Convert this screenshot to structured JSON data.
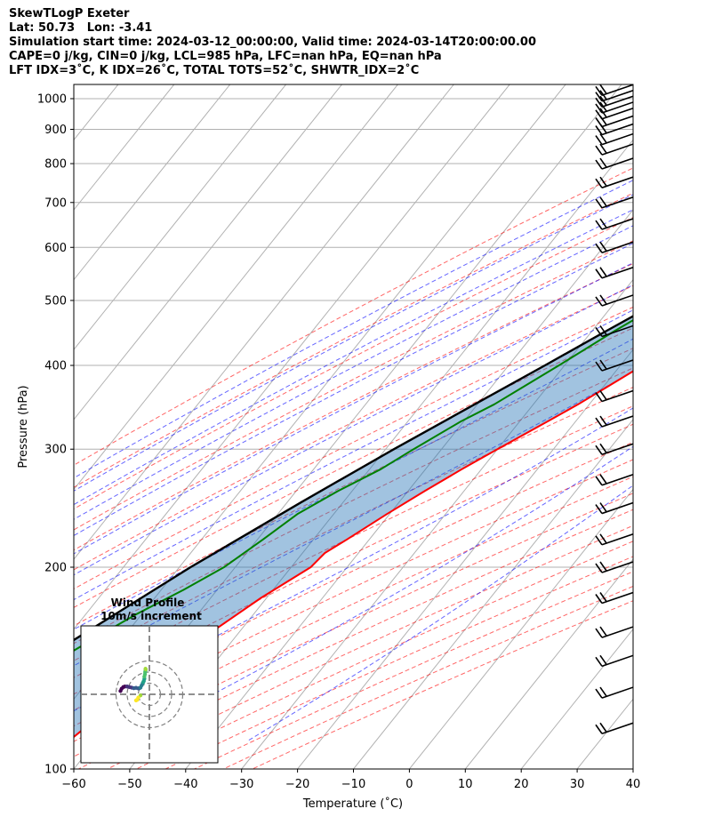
{
  "header": {
    "lines": [
      "SkewTLogP Exeter",
      "Lat: 50.73   Lon: -3.41",
      "Simulation start time: 2024-03-12_00:00:00, Valid time: 2024-03-14T20:00:00.00",
      "CAPE=0 j/kg, CIN=0 j/kg, LCL=985 hPa, LFC=nan hPa, EQ=nan hPa",
      "LFT IDX=3˚C, K IDX=26˚C, TOTAL TOTS=52˚C, SHWTR_IDX=2˚C"
    ]
  },
  "chart_data": {
    "type": "line",
    "subtype": "skew-T log-p",
    "xlabel": "Temperature (˚C)",
    "ylabel": "Pressure (hPa)",
    "xlim": [
      -60,
      40
    ],
    "ylim": [
      1050,
      100
    ],
    "y_scale": "log",
    "x_ticks": [
      -60,
      -50,
      -40,
      -30,
      -20,
      -10,
      0,
      10,
      20,
      30,
      40
    ],
    "y_ticks": [
      100,
      200,
      300,
      400,
      500,
      600,
      700,
      800,
      900,
      1000
    ],
    "grid": true,
    "series": [
      {
        "key": "temperature",
        "color": "#ff0000",
        "points": [
          [
            1000,
            11.5
          ],
          [
            950,
            11.5
          ],
          [
            925,
            11
          ],
          [
            900,
            11.3
          ],
          [
            850,
            11.8
          ],
          [
            800,
            9.3
          ],
          [
            750,
            6.6
          ],
          [
            700,
            3.8
          ],
          [
            650,
            1.3
          ],
          [
            600,
            -1.5
          ],
          [
            550,
            -4.5
          ],
          [
            500,
            -7.3
          ],
          [
            450,
            -11
          ],
          [
            400,
            -16
          ],
          [
            370,
            -19.5
          ],
          [
            350,
            -22
          ],
          [
            330,
            -25
          ],
          [
            300,
            -30
          ],
          [
            280,
            -33.5
          ],
          [
            260,
            -37
          ],
          [
            240,
            -40.5
          ],
          [
            220,
            -44
          ],
          [
            210,
            -46
          ],
          [
            200,
            -46.5
          ],
          [
            180,
            -51
          ],
          [
            160,
            -55
          ],
          [
            140,
            -59.5
          ],
          [
            120,
            -63
          ],
          [
            100,
            -67
          ]
        ]
      },
      {
        "key": "dewpoint",
        "color": "#008000",
        "points": [
          [
            1000,
            10.8
          ],
          [
            950,
            9
          ],
          [
            920,
            6.5
          ],
          [
            880,
            4
          ],
          [
            850,
            1.5
          ],
          [
            800,
            -1.5
          ],
          [
            750,
            -4.5
          ],
          [
            700,
            -7.5
          ],
          [
            650,
            -10.5
          ],
          [
            600,
            -14
          ],
          [
            550,
            -17.5
          ],
          [
            500,
            -21
          ],
          [
            450,
            -26
          ],
          [
            400,
            -31
          ],
          [
            370,
            -34.5
          ],
          [
            350,
            -37
          ],
          [
            330,
            -40.5
          ],
          [
            300,
            -45
          ],
          [
            280,
            -48
          ],
          [
            260,
            -52.5
          ],
          [
            240,
            -56.5
          ],
          [
            220,
            -59
          ],
          [
            200,
            -62
          ],
          [
            185,
            -66
          ],
          [
            170,
            -71
          ],
          [
            160,
            -74
          ],
          [
            150,
            -77
          ],
          [
            130,
            -80
          ],
          [
            100,
            -85
          ]
        ]
      },
      {
        "key": "parcel",
        "color": "#000000",
        "points": [
          [
            1000,
            11.5
          ],
          [
            985,
            11.3
          ],
          [
            950,
            10
          ],
          [
            900,
            7.6
          ],
          [
            850,
            4.8
          ],
          [
            800,
            1.8
          ],
          [
            750,
            -1.4
          ],
          [
            700,
            -4.8
          ],
          [
            650,
            -8.5
          ],
          [
            600,
            -12.6
          ],
          [
            550,
            -17
          ],
          [
            500,
            -22
          ],
          [
            450,
            -27.5
          ],
          [
            400,
            -33.5
          ],
          [
            350,
            -40.5
          ],
          [
            300,
            -48.5
          ],
          [
            250,
            -57.5
          ],
          [
            200,
            -68
          ],
          [
            150,
            -80
          ],
          [
            100,
            -94
          ]
        ]
      }
    ],
    "wind_barbs": {
      "color": "#000000",
      "levels": [
        1030,
        1010,
        990,
        970,
        950,
        925,
        900,
        870,
        840,
        800,
        750,
        700,
        650,
        600,
        550,
        500,
        450,
        400,
        360,
        330,
        300,
        270,
        245,
        220,
        200,
        180,
        160,
        145,
        130,
        115
      ]
    },
    "hodograph": {
      "title": "Wind Profile",
      "subtitle": "10m/s increment",
      "rings": [
        10,
        20,
        30
      ],
      "colormap": "viridis",
      "points": [
        [
          -26,
          3
        ],
        [
          -25,
          5
        ],
        [
          -23.5,
          6.5
        ],
        [
          -22,
          7
        ],
        [
          -20,
          7
        ],
        [
          -18,
          6.5
        ],
        [
          -16,
          6
        ],
        [
          -14,
          5.5
        ],
        [
          -12,
          5.8
        ],
        [
          -10,
          5.3
        ],
        [
          -9,
          5.5
        ],
        [
          -8,
          6
        ],
        [
          -7,
          8
        ],
        [
          -6,
          10
        ],
        [
          -5.5,
          11
        ],
        [
          -5,
          12
        ],
        [
          -4.5,
          14
        ],
        [
          -4.5,
          16
        ],
        [
          -4,
          18
        ],
        [
          -3.8,
          20
        ],
        [
          -3.5,
          21.5
        ],
        [
          -3.3,
          22.5
        ],
        [
          -3.5,
          23
        ],
        [
          -8,
          -1
        ],
        [
          -10,
          -3
        ],
        [
          -11,
          -5
        ],
        [
          -12,
          -5.5
        ]
      ]
    }
  }
}
